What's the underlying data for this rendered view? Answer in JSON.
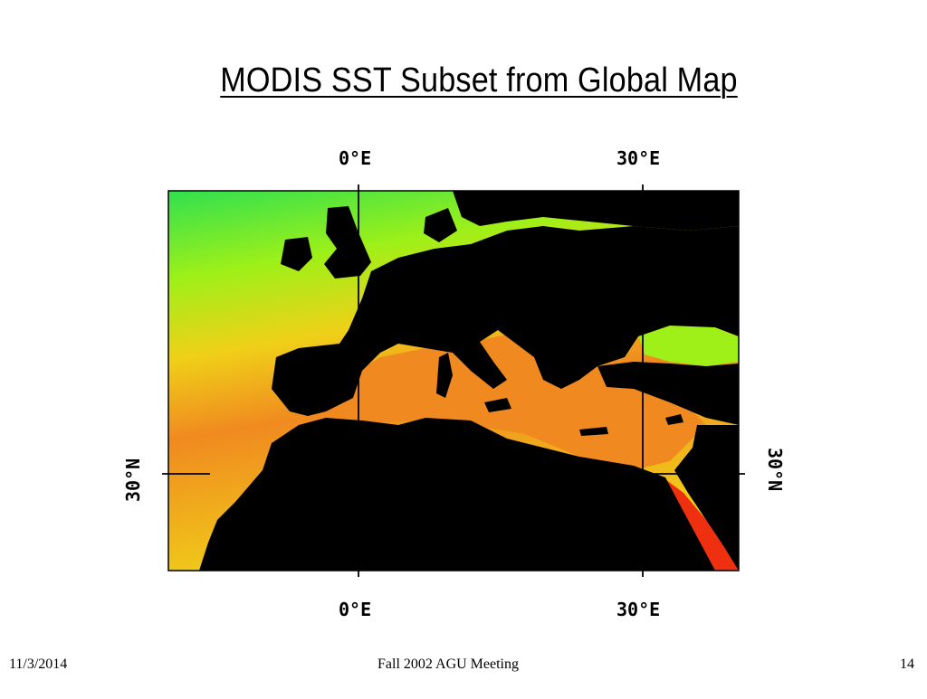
{
  "slide": {
    "title": "MODIS SST Subset from Global Map",
    "footer": {
      "date": "11/3/2014",
      "event": "Fall 2002 AGU Meeting",
      "page_number": "14"
    }
  },
  "map": {
    "longitude_labels": {
      "lon_0": "0°E",
      "lon_30": "30°E"
    },
    "latitude_labels": {
      "lat_30": "30°N"
    },
    "colors": {
      "land": "#000000",
      "sst_cold": "#30e050",
      "sst_cool": "#9ef018",
      "sst_mid": "#f0d018",
      "sst_warm": "#f08a20",
      "sst_hot": "#ee3010",
      "grid": "#000000"
    }
  }
}
